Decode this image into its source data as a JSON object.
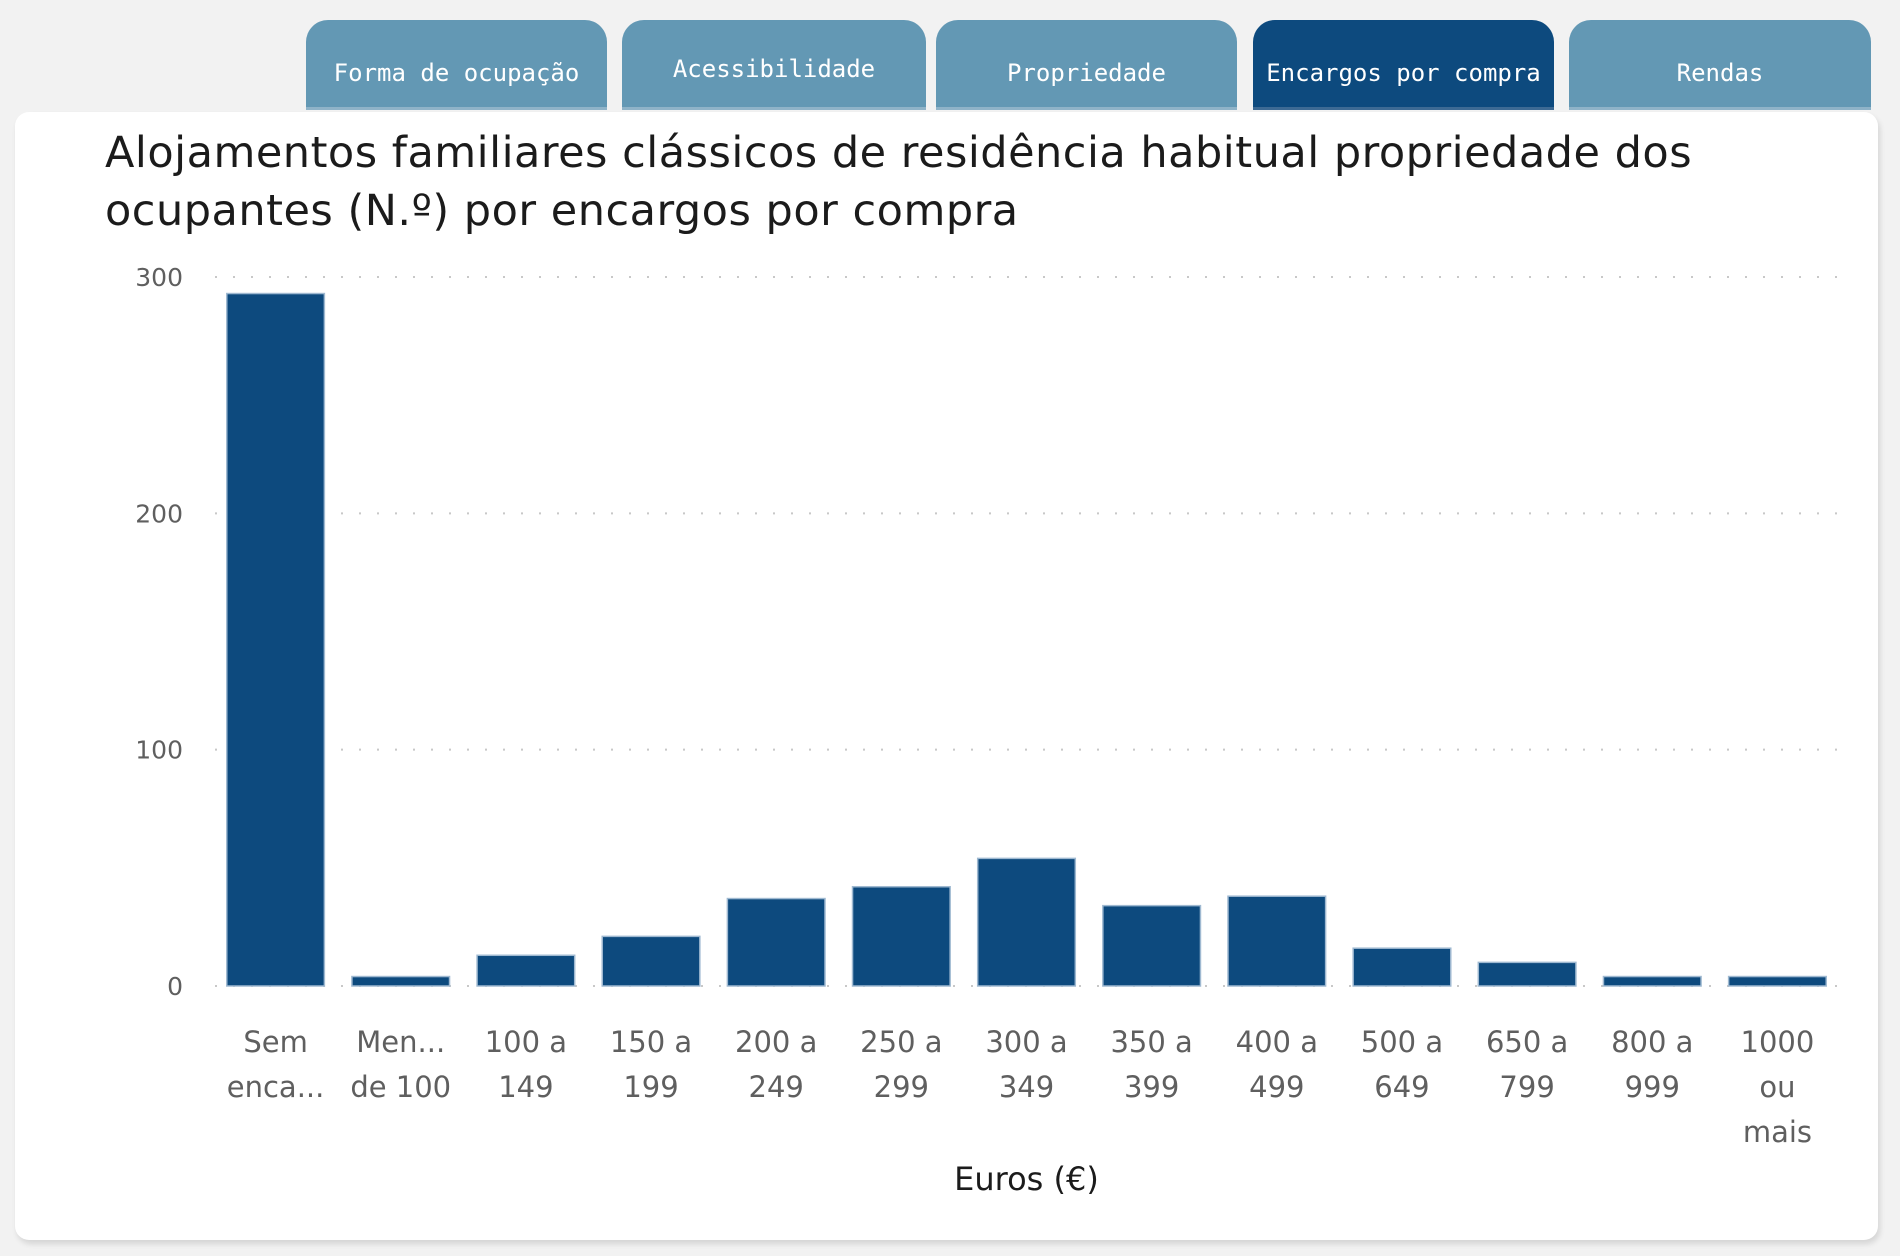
{
  "tabs": [
    {
      "label": "Forma de ocupação",
      "active": false
    },
    {
      "label": "Acessibilidade",
      "active": false
    },
    {
      "label": "Propriedade",
      "active": false
    },
    {
      "label": "Encargos por compra",
      "active": true
    },
    {
      "label": "Rendas",
      "active": false
    }
  ],
  "colors": {
    "tab": "#6398b4",
    "tab_active": "#0d4a7e",
    "bar": "#0d4a7e"
  },
  "chart_data": {
    "type": "bar",
    "title": "Alojamentos familiares clássicos de residência habitual propriedade dos ocupantes (N.º) por encargos por compra",
    "xlabel": "Euros (€)",
    "ylabel": "",
    "ylim": [
      0,
      300
    ],
    "yticks": [
      0,
      100,
      200,
      300
    ],
    "ytick_labels": [
      "0",
      "100",
      "200",
      "300"
    ],
    "grid": true,
    "categories": [
      [
        "Sem",
        "enca..."
      ],
      [
        "Men...",
        "de 100"
      ],
      [
        "100 a",
        "149"
      ],
      [
        "150 a",
        "199"
      ],
      [
        "200 a",
        "249"
      ],
      [
        "250 a",
        "299"
      ],
      [
        "300 a",
        "349"
      ],
      [
        "350 a",
        "399"
      ],
      [
        "400 a",
        "499"
      ],
      [
        "500 a",
        "649"
      ],
      [
        "650 a",
        "799"
      ],
      [
        "800 a",
        "999"
      ],
      [
        "1000",
        "ou",
        "mais"
      ]
    ],
    "values": [
      293,
      4,
      13,
      21,
      37,
      42,
      54,
      34,
      38,
      16,
      10,
      4,
      4
    ]
  }
}
